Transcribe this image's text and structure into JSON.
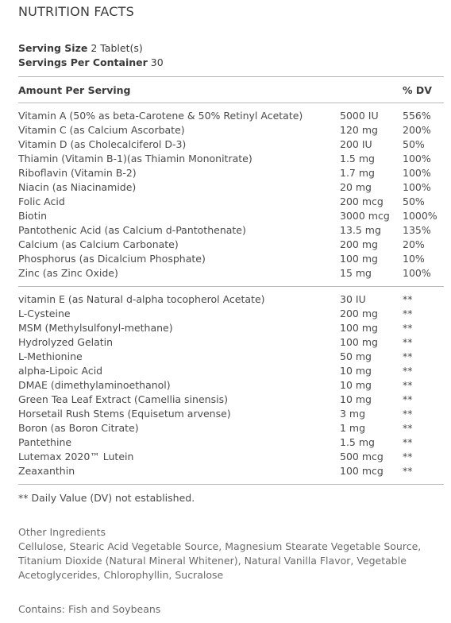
{
  "title": "NUTRITION FACTS",
  "serving_size_label": "Serving Size",
  "serving_size_value": "2 Tablet(s)",
  "servings_label": "Servings Per Container",
  "servings_value": "30",
  "header": {
    "amount": "Amount Per Serving",
    "dv": "% DV"
  },
  "section1": [
    {
      "name": "Vitamin A (50% as beta-Carotene & 50% Retinyl Acetate)",
      "amount": "5000 IU",
      "dv": "556%"
    },
    {
      "name": "Vitamin C (as Calcium Ascorbate)",
      "amount": "120 mg",
      "dv": "200%"
    },
    {
      "name": "Vitamin D (as Cholecalciferol D-3)",
      "amount": "200 IU",
      "dv": "50%"
    },
    {
      "name": "Thiamin (Vitamin B-1)(as Thiamin Mononitrate)",
      "amount": "1.5 mg",
      "dv": "100%"
    },
    {
      "name": "Riboflavin (Vitamin B-2)",
      "amount": "1.7 mg",
      "dv": "100%"
    },
    {
      "name": "Niacin (as Niacinamide)",
      "amount": "20 mg",
      "dv": "100%"
    },
    {
      "name": "Folic Acid",
      "amount": "200 mcg",
      "dv": "50%"
    },
    {
      "name": "Biotin",
      "amount": "3000 mcg",
      "dv": "1000%"
    },
    {
      "name": "Pantothenic Acid (as Calcium d-Pantothenate)",
      "amount": "13.5 mg",
      "dv": "135%"
    },
    {
      "name": "Calcium (as Calcium Carbonate)",
      "amount": "200 mg",
      "dv": "20%"
    },
    {
      "name": "Phosphorus (as Dicalcium Phosphate)",
      "amount": "100 mg",
      "dv": "10%"
    },
    {
      "name": "Zinc (as Zinc Oxide)",
      "amount": "15 mg",
      "dv": "100%"
    }
  ],
  "section2": [
    {
      "name": "vitamin E (as Natural d-alpha tocopherol Acetate)",
      "amount": "30 IU",
      "dv": "**"
    },
    {
      "name": "L-Cysteine",
      "amount": "200 mg",
      "dv": "**"
    },
    {
      "name": "MSM (Methylsulfonyl-methane)",
      "amount": "100 mg",
      "dv": "**"
    },
    {
      "name": "Hydrolyzed Gelatin",
      "amount": "100 mg",
      "dv": "**"
    },
    {
      "name": "L-Methionine",
      "amount": "50 mg",
      "dv": "**"
    },
    {
      "name": "alpha-Lipoic Acid",
      "amount": "10 mg",
      "dv": "**"
    },
    {
      "name": "DMAE (dimethylaminoethanol)",
      "amount": "10 mg",
      "dv": "**"
    },
    {
      "name": "Green Tea Leaf Extract (Camellia sinensis)",
      "amount": "10 mg",
      "dv": "**"
    },
    {
      "name": "Horsetail Rush Stems (Equisetum arvense)",
      "amount": "3 mg",
      "dv": "**"
    },
    {
      "name": "Boron (as Boron Citrate)",
      "amount": "1 mg",
      "dv": "**"
    },
    {
      "name": "Pantethine",
      "amount": "1.5 mg",
      "dv": "**"
    },
    {
      "name": "Lutemax 2020™ Lutein",
      "amount": "500 mcg",
      "dv": "**"
    },
    {
      "name": "Zeaxanthin",
      "amount": "100 mcg",
      "dv": "**"
    }
  ],
  "footnote": "** Daily Value (DV) not established.",
  "other_label": "Other Ingredients",
  "other_text": "Cellulose, Stearic Acid Vegetable Source, Magnesium Stearate Vegetable Source, Titanium Dioxide (Natural Mineral Whitener), Natural Vanilla Flavor, Vegetable Acetoglycerides, Chlorophyllin, Sucralose",
  "contains": "Contains: Fish and Soybeans"
}
